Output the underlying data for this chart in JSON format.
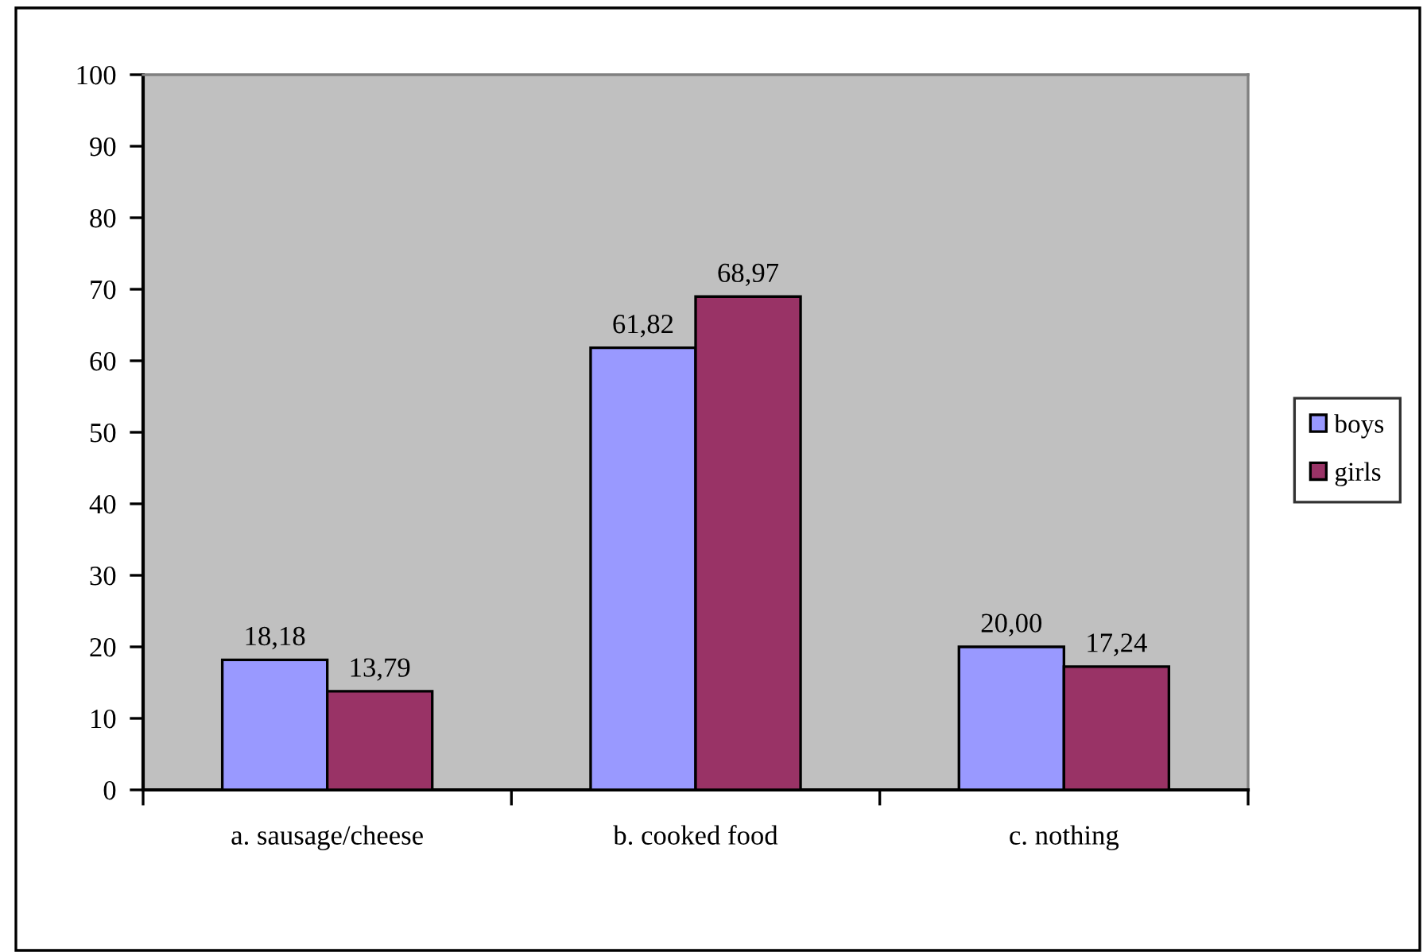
{
  "chart_data": {
    "type": "bar",
    "categories": [
      "a. sausage/cheese",
      "b. cooked food",
      "c. nothing"
    ],
    "series": [
      {
        "name": "boys",
        "color": "#9999ff",
        "values": [
          18.18,
          61.82,
          20.0
        ],
        "value_labels": [
          "18,18",
          "61,82",
          "20,00"
        ]
      },
      {
        "name": "girls",
        "color": "#993366",
        "values": [
          13.79,
          68.97,
          17.24
        ],
        "value_labels": [
          "13,79",
          "68,97",
          "17,24"
        ]
      }
    ],
    "ylim": [
      0,
      100
    ],
    "yticks": [
      0,
      10,
      20,
      30,
      40,
      50,
      60,
      70,
      80,
      90,
      100
    ],
    "grid": false,
    "legend": "right"
  }
}
